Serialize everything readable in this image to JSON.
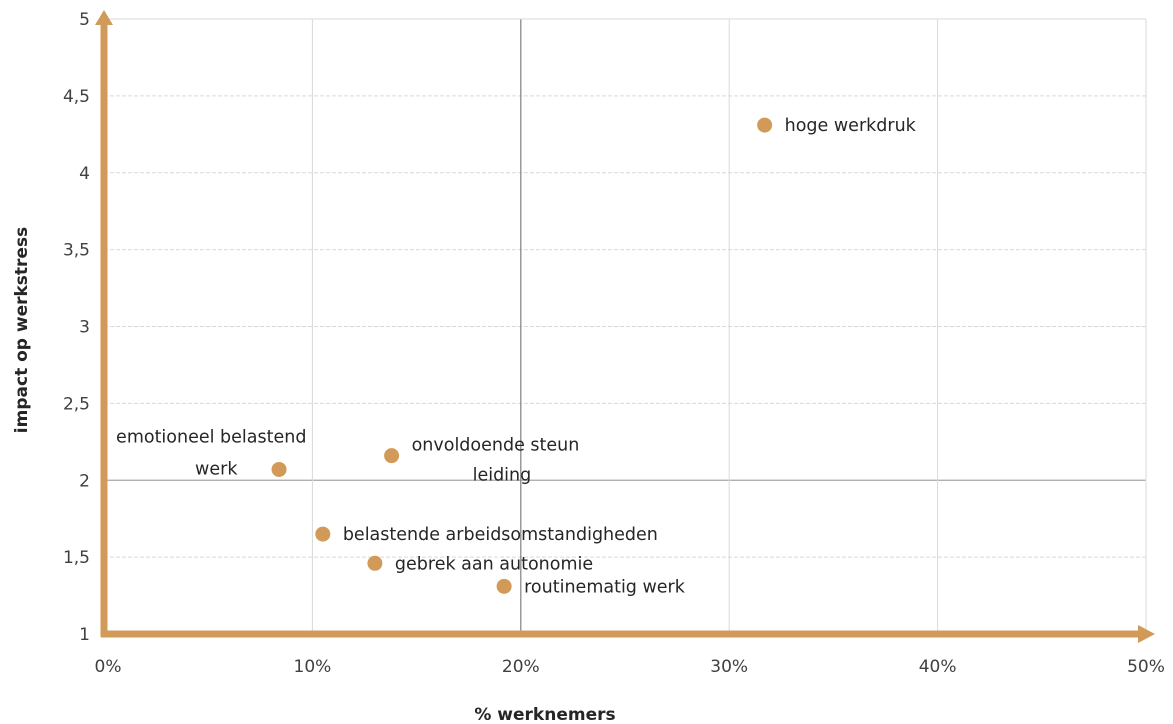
{
  "chart_data": {
    "type": "scatter",
    "title": "",
    "xlabel": "% werknemers",
    "ylabel": "impact op werkstress",
    "xlim": [
      0,
      50
    ],
    "ylim": [
      1,
      5
    ],
    "x_ticks": [
      "0%",
      "10%",
      "20%",
      "30%",
      "40%",
      "50%"
    ],
    "y_ticks": [
      "1",
      "1,5",
      "2",
      "2,5",
      "3",
      "3,5",
      "4",
      "4,5",
      "5"
    ],
    "crosshair": {
      "x": 20,
      "y": 2
    },
    "grid": true,
    "point_color": "#d29a59",
    "axis_color": "#d29a59",
    "points": [
      {
        "label": "hoge werkdruk",
        "x": 31.7,
        "y": 4.31
      },
      {
        "label": "emotioneel belastend werk",
        "label_lines": [
          "emotioneel belastend",
          "werk"
        ],
        "x": 8.4,
        "y": 2.07
      },
      {
        "label": "onvoldoende steun leiding",
        "label_lines": [
          "onvoldoende steun",
          "leiding"
        ],
        "x": 13.8,
        "y": 2.16
      },
      {
        "label": "belastende arbeidsomstandigheden",
        "x": 10.5,
        "y": 1.65
      },
      {
        "label": "gebrek aan autonomie",
        "x": 13.0,
        "y": 1.46
      },
      {
        "label": "routinematig werk",
        "x": 19.2,
        "y": 1.31
      }
    ]
  }
}
